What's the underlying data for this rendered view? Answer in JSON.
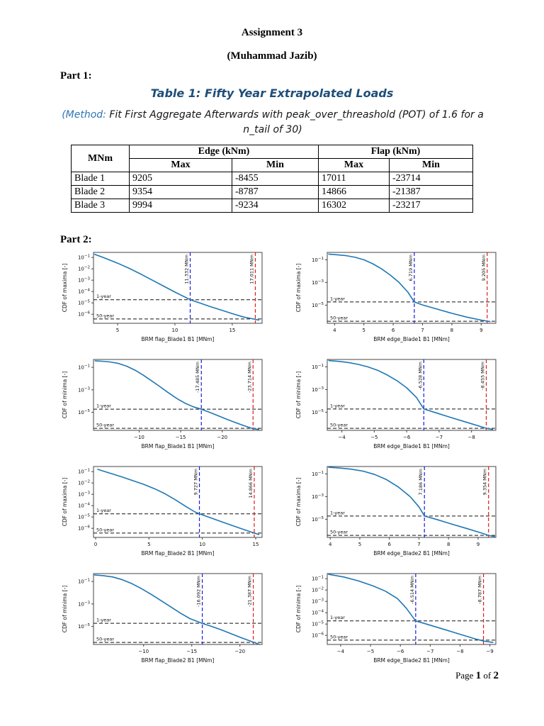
{
  "doc": {
    "title": "Assignment 3",
    "author": "(Muhammad Jazib)",
    "part1_label": "Part 1:",
    "table_caption": "Table 1: Fifty Year Extrapolated Loads",
    "method_prefix": "(Method:",
    "method_rest": " Fit First Aggregate Afterwards with peak_over_threashold (POT) of 1.6 for a n_tail of 30)",
    "part2_label": "Part 2:"
  },
  "footer": {
    "page_word": "Page ",
    "page_number": "1",
    "of_word": " of ",
    "total_pages": "2"
  },
  "colors": {
    "curve": "#1f77b4",
    "vline_blue": "#1a1ae0",
    "vline_red": "#e01a1a",
    "caption_blue": "#1f4e79",
    "method_blue": "#2e75b5"
  },
  "table": {
    "unit_header": "MNm",
    "group_headers": [
      "Edge (kNm)",
      "Flap (kNm)"
    ],
    "sub_headers": [
      "Max",
      "Min",
      "Max",
      "Min"
    ],
    "rows": [
      {
        "label": "Blade 1",
        "values": [
          "9205",
          "-8455",
          "17011",
          "-23714"
        ]
      },
      {
        "label": "Blade 2",
        "values": [
          "9354",
          "-8787",
          "14866",
          "-21387"
        ]
      },
      {
        "label": "Blade 3",
        "values": [
          "9994",
          "-9234",
          "16302",
          "-23217"
        ]
      }
    ]
  },
  "chart_data": [
    {
      "type": "line",
      "ylabel": "CDF of maxima [-]",
      "xlabel": "BRM flap_Blade1 B1 [MNm]",
      "xlim": [
        2.9,
        17.6
      ],
      "x_ticks": [
        5,
        10,
        15
      ],
      "ylim_log": [
        -6.8,
        -0.55
      ],
      "y_tick_exps": [
        -1,
        -2,
        -3,
        -4,
        -5,
        -6
      ],
      "hlines": [
        {
          "logy": -4.72,
          "label": "1-year"
        },
        {
          "logy": -6.42,
          "label": "50-year"
        }
      ],
      "vlines": [
        {
          "x": 11.332,
          "label": "11.332 MNm",
          "color": "#1a1ae0"
        },
        {
          "x": 17.011,
          "label": "17.011 MNm",
          "color": "#e01a1a"
        }
      ],
      "series": [
        {
          "name": "CDF",
          "points": [
            [
              3,
              -0.72
            ],
            [
              3.5,
              -0.9
            ],
            [
              4,
              -1.1
            ],
            [
              5,
              -1.5
            ],
            [
              6,
              -1.95
            ],
            [
              7,
              -2.45
            ],
            [
              8,
              -2.98
            ],
            [
              9,
              -3.52
            ],
            [
              10,
              -4.05
            ],
            [
              11,
              -4.55
            ],
            [
              11.33,
              -4.72
            ],
            [
              12,
              -4.95
            ],
            [
              13,
              -5.3
            ],
            [
              14,
              -5.62
            ],
            [
              15,
              -5.95
            ],
            [
              16,
              -6.25
            ],
            [
              17,
              -6.45
            ],
            [
              17.3,
              -6.52
            ]
          ]
        }
      ]
    },
    {
      "type": "line",
      "ylabel": "CDF of maxima [-]",
      "xlabel": "BRM edge_Blade1 B1 [MNm]",
      "xlim": [
        3.75,
        9.5
      ],
      "x_ticks": [
        4,
        5,
        6,
        7,
        8,
        9
      ],
      "ylim_log": [
        -6.6,
        -0.35
      ],
      "y_tick_exps": [
        -1,
        -3,
        -5
      ],
      "hlines": [
        {
          "logy": -4.72,
          "label": "1-year"
        },
        {
          "logy": -6.42,
          "label": "50-year"
        }
      ],
      "vlines": [
        {
          "x": 6.719,
          "label": "6.719 MNm",
          "color": "#1a1ae0"
        },
        {
          "x": 9.205,
          "label": "9.205 MNm",
          "color": "#e01a1a"
        }
      ],
      "series": [
        {
          "name": "CDF",
          "points": [
            [
              3.8,
              -0.5
            ],
            [
              4.1,
              -0.56
            ],
            [
              4.4,
              -0.64
            ],
            [
              4.7,
              -0.78
            ],
            [
              5,
              -1.0
            ],
            [
              5.3,
              -1.35
            ],
            [
              5.6,
              -1.8
            ],
            [
              5.9,
              -2.35
            ],
            [
              6.2,
              -3.0
            ],
            [
              6.5,
              -3.85
            ],
            [
              6.72,
              -4.72
            ],
            [
              7,
              -4.98
            ],
            [
              7.5,
              -5.35
            ],
            [
              8,
              -5.72
            ],
            [
              8.5,
              -6.05
            ],
            [
              9,
              -6.32
            ],
            [
              9.3,
              -6.45
            ]
          ]
        }
      ]
    },
    {
      "type": "line",
      "ylabel": "CDF of minima [-]",
      "xlabel": "BRM flap_Blade1 B1 [MNm]",
      "xlim": [
        -4.5,
        -24.8
      ],
      "x_ticks": [
        -10,
        -15,
        -20
      ],
      "ylim_log": [
        -6.6,
        -0.3
      ],
      "y_tick_exps": [
        -1,
        -3,
        -5
      ],
      "hlines": [
        {
          "logy": -4.72,
          "label": "1-year"
        },
        {
          "logy": -6.42,
          "label": "50-year"
        }
      ],
      "vlines": [
        {
          "x": -17.485,
          "label": "-17.485 MNm",
          "color": "#1a1ae0"
        },
        {
          "x": -23.714,
          "label": "-23.714 MNm",
          "color": "#e01a1a"
        }
      ],
      "series": [
        {
          "name": "CDF",
          "points": [
            [
              -4.7,
              -0.42
            ],
            [
              -5.5,
              -0.46
            ],
            [
              -6.5,
              -0.52
            ],
            [
              -7.5,
              -0.65
            ],
            [
              -8.5,
              -0.9
            ],
            [
              -9.5,
              -1.25
            ],
            [
              -10.5,
              -1.7
            ],
            [
              -11.5,
              -2.2
            ],
            [
              -12.5,
              -2.72
            ],
            [
              -13.5,
              -3.25
            ],
            [
              -14.5,
              -3.75
            ],
            [
              -15.5,
              -4.18
            ],
            [
              -16.5,
              -4.5
            ],
            [
              -17.49,
              -4.72
            ],
            [
              -18.5,
              -5.0
            ],
            [
              -19.5,
              -5.3
            ],
            [
              -20.5,
              -5.6
            ],
            [
              -21.5,
              -5.88
            ],
            [
              -22.5,
              -6.15
            ],
            [
              -23.71,
              -6.45
            ],
            [
              -24.4,
              -6.52
            ]
          ]
        }
      ]
    },
    {
      "type": "line",
      "ylabel": "CDF of minima [-]",
      "xlabel": "BRM edge_Blade1 B1 [MNm]",
      "xlim": [
        -3.55,
        -8.75
      ],
      "x_ticks": [
        -4,
        -5,
        -6,
        -7,
        -8
      ],
      "ylim_log": [
        -6.6,
        -0.35
      ],
      "y_tick_exps": [
        -1,
        -3,
        -5
      ],
      "hlines": [
        {
          "logy": -4.72,
          "label": "1-year"
        },
        {
          "logy": -6.42,
          "label": "50-year"
        }
      ],
      "vlines": [
        {
          "x": -6.528,
          "label": "-6.528 MNm",
          "color": "#1a1ae0"
        },
        {
          "x": -8.455,
          "label": "-8.455 MNm",
          "color": "#e01a1a"
        }
      ],
      "series": [
        {
          "name": "CDF",
          "points": [
            [
              -3.6,
              -0.45
            ],
            [
              -3.9,
              -0.52
            ],
            [
              -4.2,
              -0.62
            ],
            [
              -4.5,
              -0.78
            ],
            [
              -4.8,
              -1.0
            ],
            [
              -5.1,
              -1.3
            ],
            [
              -5.4,
              -1.72
            ],
            [
              -5.7,
              -2.22
            ],
            [
              -6.0,
              -2.85
            ],
            [
              -6.3,
              -3.7
            ],
            [
              -6.53,
              -4.72
            ],
            [
              -6.9,
              -5.05
            ],
            [
              -7.4,
              -5.5
            ],
            [
              -7.9,
              -5.93
            ],
            [
              -8.46,
              -6.42
            ],
            [
              -8.65,
              -6.52
            ]
          ]
        }
      ]
    },
    {
      "type": "line",
      "ylabel": "CDF of maxima [-]",
      "xlabel": "BRM flap_Blade2 B1 [MNm]",
      "xlim": [
        -0.2,
        15.6
      ],
      "x_ticks": [
        0,
        5,
        10,
        15
      ],
      "ylim_log": [
        -6.8,
        -0.55
      ],
      "y_tick_exps": [
        -1,
        -2,
        -3,
        -4,
        -5,
        -6
      ],
      "hlines": [
        {
          "logy": -4.72,
          "label": "1-year"
        },
        {
          "logy": -6.42,
          "label": "50-year"
        }
      ],
      "vlines": [
        {
          "x": 9.727,
          "label": "9.727 MNm",
          "color": "#1a1ae0"
        },
        {
          "x": 14.866,
          "label": "14.866 MNm",
          "color": "#e01a1a"
        }
      ],
      "series": [
        {
          "name": "CDF",
          "points": [
            [
              0.2,
              -0.8
            ],
            [
              0.8,
              -0.98
            ],
            [
              1.5,
              -1.18
            ],
            [
              2.5,
              -1.48
            ],
            [
              3.5,
              -1.8
            ],
            [
              4.5,
              -2.12
            ],
            [
              5.5,
              -2.5
            ],
            [
              6.5,
              -2.95
            ],
            [
              7.5,
              -3.5
            ],
            [
              8.5,
              -4.1
            ],
            [
              9.3,
              -4.55
            ],
            [
              9.73,
              -4.72
            ],
            [
              10.5,
              -4.98
            ],
            [
              11.5,
              -5.32
            ],
            [
              12.5,
              -5.65
            ],
            [
              13.5,
              -5.98
            ],
            [
              14.87,
              -6.42
            ],
            [
              15.3,
              -6.55
            ]
          ]
        }
      ]
    },
    {
      "type": "line",
      "ylabel": "CDF of maxima [-]",
      "xlabel": "BRM edge_Blade2 B1 [MNm]",
      "xlim": [
        3.9,
        9.6
      ],
      "x_ticks": [
        4,
        5,
        6,
        7,
        8,
        9
      ],
      "ylim_log": [
        -6.6,
        -0.35
      ],
      "y_tick_exps": [
        -1,
        -3,
        -5
      ],
      "hlines": [
        {
          "logy": -4.72,
          "label": "1-year"
        },
        {
          "logy": -6.42,
          "label": "50-year"
        }
      ],
      "vlines": [
        {
          "x": 7.186,
          "label": "7.186 MNm",
          "color": "#1a1ae0"
        },
        {
          "x": 9.354,
          "label": "9.354 MNm",
          "color": "#e01a1a"
        }
      ],
      "series": [
        {
          "name": "CDF",
          "points": [
            [
              3.95,
              -0.42
            ],
            [
              4.3,
              -0.48
            ],
            [
              4.7,
              -0.58
            ],
            [
              5.1,
              -0.75
            ],
            [
              5.5,
              -1.05
            ],
            [
              5.9,
              -1.5
            ],
            [
              6.3,
              -2.15
            ],
            [
              6.7,
              -3.0
            ],
            [
              7.0,
              -3.9
            ],
            [
              7.19,
              -4.72
            ],
            [
              7.6,
              -5.02
            ],
            [
              8.1,
              -5.42
            ],
            [
              8.6,
              -5.8
            ],
            [
              9.1,
              -6.2
            ],
            [
              9.35,
              -6.42
            ],
            [
              9.55,
              -6.52
            ]
          ]
        }
      ]
    },
    {
      "type": "line",
      "ylabel": "CDF of minima [-]",
      "xlabel": "BRM flap_Blade2 B1 [MNm]",
      "xlim": [
        -4.8,
        -22.3
      ],
      "x_ticks": [
        -10,
        -15,
        -20
      ],
      "ylim_log": [
        -6.6,
        -0.3
      ],
      "y_tick_exps": [
        -1,
        -3,
        -5
      ],
      "hlines": [
        {
          "logy": -4.72,
          "label": "1-year"
        },
        {
          "logy": -6.42,
          "label": "50-year"
        }
      ],
      "vlines": [
        {
          "x": -16.092,
          "label": "-16.092 MNm",
          "color": "#1a1ae0"
        },
        {
          "x": -21.387,
          "label": "-21.387 MNm",
          "color": "#e01a1a"
        }
      ],
      "series": [
        {
          "name": "CDF",
          "points": [
            [
              -4.9,
              -0.42
            ],
            [
              -5.8,
              -0.48
            ],
            [
              -6.8,
              -0.6
            ],
            [
              -7.8,
              -0.85
            ],
            [
              -8.8,
              -1.2
            ],
            [
              -9.8,
              -1.65
            ],
            [
              -10.8,
              -2.15
            ],
            [
              -11.8,
              -2.7
            ],
            [
              -12.8,
              -3.25
            ],
            [
              -13.8,
              -3.8
            ],
            [
              -14.8,
              -4.3
            ],
            [
              -16.09,
              -4.72
            ],
            [
              -17,
              -4.98
            ],
            [
              -18,
              -5.28
            ],
            [
              -19,
              -5.62
            ],
            [
              -20,
              -5.95
            ],
            [
              -21.39,
              -6.4
            ],
            [
              -22,
              -6.58
            ]
          ]
        }
      ]
    },
    {
      "type": "line",
      "ylabel": "CDF of minima [-]",
      "xlabel": "BRM edge_Blade2 B1 [MNm]",
      "xlim": [
        -3.55,
        -9.2
      ],
      "x_ticks": [
        -4,
        -5,
        -6,
        -7,
        -8,
        -9
      ],
      "ylim_log": [
        -6.8,
        -0.55
      ],
      "y_tick_exps": [
        -1,
        -2,
        -3,
        -4,
        -5,
        -6
      ],
      "hlines": [
        {
          "logy": -4.72,
          "label": "1-year"
        },
        {
          "logy": -6.42,
          "label": "50-year"
        }
      ],
      "vlines": [
        {
          "x": -6.514,
          "label": "-6.514 MNm",
          "color": "#1a1ae0"
        },
        {
          "x": -8.787,
          "label": "-8.787 MNm",
          "color": "#e01a1a"
        }
      ],
      "series": [
        {
          "name": "CDF",
          "points": [
            [
              -3.6,
              -0.62
            ],
            [
              -4.1,
              -0.85
            ],
            [
              -4.6,
              -1.2
            ],
            [
              -5.1,
              -1.65
            ],
            [
              -5.5,
              -2.1
            ],
            [
              -5.9,
              -2.75
            ],
            [
              -6.2,
              -3.6
            ],
            [
              -6.51,
              -4.72
            ],
            [
              -7.0,
              -5.1
            ],
            [
              -7.5,
              -5.5
            ],
            [
              -8.0,
              -5.9
            ],
            [
              -8.5,
              -6.3
            ],
            [
              -8.79,
              -6.5
            ],
            [
              -9.1,
              -6.62
            ]
          ]
        }
      ]
    }
  ]
}
